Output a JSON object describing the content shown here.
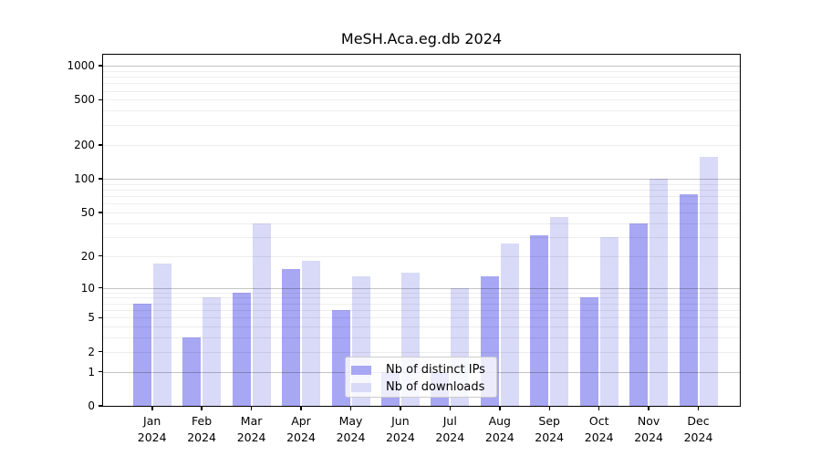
{
  "title": "MeSH.Aca.eg.db 2024",
  "chart_data": {
    "type": "bar",
    "title": "MeSH.Aca.eg.db 2024",
    "categories": [
      "Jan",
      "Feb",
      "Mar",
      "Apr",
      "May",
      "Jun",
      "Jul",
      "Aug",
      "Sep",
      "Oct",
      "Nov",
      "Dec"
    ],
    "year": "2024",
    "series": [
      {
        "name": "Nb of distinct IPs",
        "color": "#a7a7f4",
        "values": [
          7,
          3,
          9,
          15,
          6,
          1,
          1,
          13,
          31,
          8,
          40,
          73
        ]
      },
      {
        "name": "Nb of downloads",
        "color": "#d9d9f8",
        "values": [
          17,
          8,
          40,
          18,
          13,
          14,
          10,
          26,
          45,
          30,
          100,
          155
        ]
      }
    ],
    "yscale": "log1p",
    "yticks": [
      0,
      1,
      2,
      5,
      10,
      20,
      50,
      100,
      200,
      500,
      1000
    ],
    "ylim": [
      0,
      1200
    ],
    "grid": true,
    "legend_position": "lower center inside"
  },
  "legend": {
    "items": [
      {
        "label": "Nb of distinct IPs",
        "color": "#a7a7f4"
      },
      {
        "label": "Nb of downloads",
        "color": "#d9d9f8"
      }
    ]
  }
}
